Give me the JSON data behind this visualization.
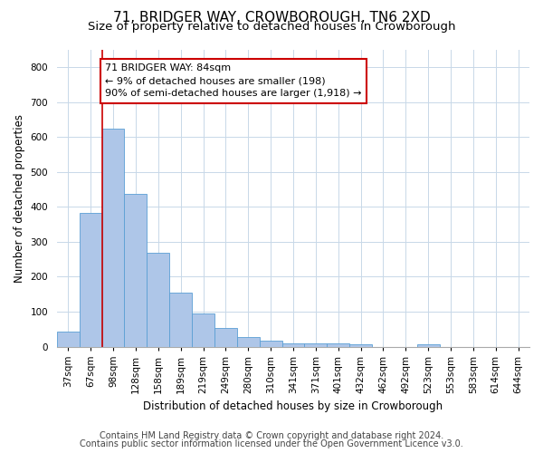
{
  "title": "71, BRIDGER WAY, CROWBOROUGH, TN6 2XD",
  "subtitle": "Size of property relative to detached houses in Crowborough",
  "xlabel": "Distribution of detached houses by size in Crowborough",
  "ylabel": "Number of detached properties",
  "categories": [
    "37sqm",
    "67sqm",
    "98sqm",
    "128sqm",
    "158sqm",
    "189sqm",
    "219sqm",
    "249sqm",
    "280sqm",
    "310sqm",
    "341sqm",
    "371sqm",
    "401sqm",
    "432sqm",
    "462sqm",
    "492sqm",
    "523sqm",
    "553sqm",
    "583sqm",
    "614sqm",
    "644sqm"
  ],
  "values": [
    42,
    382,
    625,
    437,
    268,
    155,
    95,
    52,
    27,
    16,
    10,
    10,
    10,
    7,
    0,
    0,
    7,
    0,
    0,
    0,
    0
  ],
  "bar_color": "#aec6e8",
  "bar_edge_color": "#5a9fd4",
  "vline_x": 1.5,
  "vline_color": "#cc0000",
  "annotation_line1": "71 BRIDGER WAY: 84sqm",
  "annotation_line2": "← 9% of detached houses are smaller (198)",
  "annotation_line3": "90% of semi-detached houses are larger (1,918) →",
  "annotation_box_color": "#ffffff",
  "annotation_box_edge_color": "#cc0000",
  "ylim": [
    0,
    850
  ],
  "yticks": [
    0,
    100,
    200,
    300,
    400,
    500,
    600,
    700,
    800
  ],
  "footer_line1": "Contains HM Land Registry data © Crown copyright and database right 2024.",
  "footer_line2": "Contains public sector information licensed under the Open Government Licence v3.0.",
  "bg_color": "#ffffff",
  "grid_color": "#c8d8e8",
  "title_fontsize": 11,
  "subtitle_fontsize": 9.5,
  "axis_label_fontsize": 8.5,
  "tick_fontsize": 7.5,
  "annotation_fontsize": 8,
  "footer_fontsize": 7
}
